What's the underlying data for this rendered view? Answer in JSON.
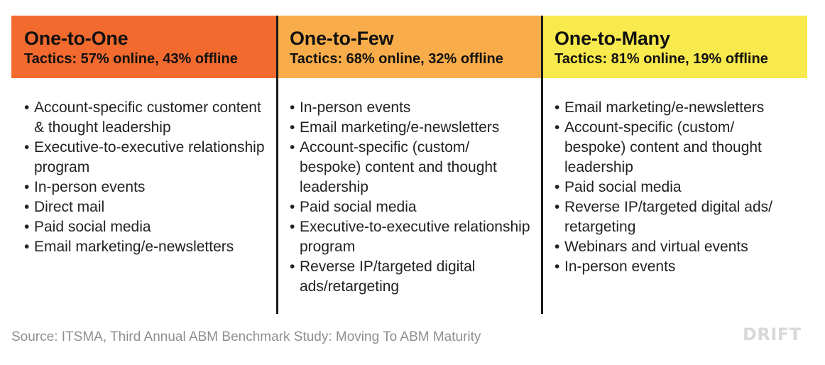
{
  "columns": [
    {
      "title": "One-to-One",
      "subtitle": "Tactics: 57% online, 43% offline",
      "header_color": "#f26a2e",
      "items": [
        "Account-specific customer content & thought leadership",
        "Executive-to-executive relationship program",
        "In-person events",
        "Direct mail",
        "Paid social media",
        "Email marketing/e-newsletters"
      ]
    },
    {
      "title": "One-to-Few",
      "subtitle": "Tactics: 68% online, 32% offline",
      "header_color": "#f9ad4a",
      "items": [
        "In-person events",
        "Email marketing/e-newsletters",
        "Account-specific (custom/ bespoke) content and thought leadership",
        "Paid social media",
        "Executive-to-executive relationship program",
        "Reverse IP/targeted digital ads/retargeting"
      ]
    },
    {
      "title": "One-to-Many",
      "subtitle": "Tactics: 81% online, 19% offline",
      "header_color": "#f8e94c",
      "items": [
        "Email marketing/e-newsletters",
        "Account-specific (custom/ bespoke) content and thought leadership",
        "Paid social media",
        "Reverse IP/targeted digital ads/ retargeting",
        "Webinars and virtual events",
        "In-person events"
      ]
    }
  ],
  "bullet_glyph": "•",
  "source": "Source: ITSMA, Third Annual ABM Benchmark Study: Moving To ABM Maturity",
  "logo": "DRIFT"
}
